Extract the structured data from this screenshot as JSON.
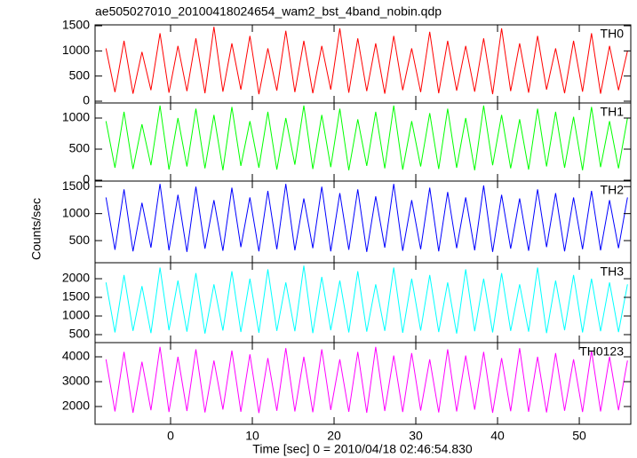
{
  "chart_data": [
    {
      "type": "line",
      "title": "ae505027010_20100418024654_wam2_bst_4band_nobin.qdp",
      "label": "TH0",
      "color": "#ff0000",
      "x": [
        -7.9,
        -6.8,
        -5.7,
        -4.6,
        -3.5,
        -2.4,
        -1.3,
        -0.2,
        0.9,
        2,
        3.1,
        4.2,
        5.3,
        6.4,
        7.5,
        8.6,
        9.7,
        10.8,
        11.9,
        13,
        14.1,
        15.2,
        16.3,
        17.4,
        18.5,
        19.6,
        20.7,
        21.8,
        22.9,
        24,
        25.1,
        26.2,
        27.3,
        28.4,
        29.5,
        30.6,
        31.7,
        32.8,
        33.9,
        35,
        36.1,
        37.2,
        38.3,
        39.4,
        40.5,
        41.6,
        42.7,
        43.8,
        44.9,
        46,
        47.1,
        48.2,
        49.3,
        50.4,
        51.5,
        52.6,
        53.7,
        54.8,
        55.9
      ],
      "values": [
        1050,
        180,
        1200,
        150,
        980,
        220,
        1350,
        170,
        1100,
        200,
        1250,
        160,
        1480,
        190,
        1150,
        230,
        1300,
        140,
        1050,
        210,
        1400,
        180,
        1200,
        160,
        1100,
        230,
        1450,
        170,
        1250,
        200,
        1150,
        150,
        1300,
        220,
        1050,
        180,
        1380,
        160,
        1200,
        210,
        1100,
        190,
        1250,
        140,
        1450,
        200,
        1150,
        170,
        1300,
        230,
        1050,
        160,
        1200,
        190,
        1350,
        150,
        1100,
        220,
        1000
      ],
      "xlim": [
        -9.24,
        56.3
      ],
      "xticks": [
        0,
        10,
        20,
        30,
        40,
        50
      ],
      "ylim": [
        -35,
        1518
      ],
      "yticks": [
        0,
        500,
        1000,
        1500
      ]
    },
    {
      "type": "line",
      "label": "TH1",
      "color": "#00ff00",
      "x": [
        -7.9,
        -6.8,
        -5.7,
        -4.6,
        -3.5,
        -2.4,
        -1.3,
        -0.2,
        0.9,
        2,
        3.1,
        4.2,
        5.3,
        6.4,
        7.5,
        8.6,
        9.7,
        10.8,
        11.9,
        13,
        14.1,
        15.2,
        16.3,
        17.4,
        18.5,
        19.6,
        20.7,
        21.8,
        22.9,
        24,
        25.1,
        26.2,
        27.3,
        28.4,
        29.5,
        30.6,
        31.7,
        32.8,
        33.9,
        35,
        36.1,
        37.2,
        38.3,
        39.4,
        40.5,
        41.6,
        42.7,
        43.8,
        44.9,
        46,
        47.1,
        48.2,
        49.3,
        50.4,
        51.5,
        52.6,
        53.7,
        54.8,
        55.9
      ],
      "values": [
        950,
        200,
        1100,
        180,
        900,
        240,
        1200,
        170,
        1000,
        220,
        1150,
        190,
        1050,
        160,
        1180,
        230,
        950,
        200,
        1100,
        170,
        1000,
        250,
        1200,
        180,
        1050,
        210,
        1150,
        160,
        980,
        230,
        1100,
        190,
        1200,
        170,
        950,
        220,
        1080,
        180,
        1150,
        200,
        1000,
        160,
        1200,
        240,
        1050,
        190,
        980,
        170,
        1150,
        220,
        1100,
        200,
        1020,
        160,
        1180,
        210,
        950,
        190,
        1000
      ],
      "xlim": [
        -9.24,
        56.3
      ],
      "xticks": [
        0,
        10,
        20,
        30,
        40,
        50
      ],
      "ylim": [
        -14,
        1243
      ],
      "yticks": [
        0,
        500,
        1000
      ]
    },
    {
      "type": "line",
      "label": "TH2",
      "color": "#0000ff",
      "ylabel": "Counts/sec",
      "x": [
        -7.9,
        -6.8,
        -5.7,
        -4.6,
        -3.5,
        -2.4,
        -1.3,
        -0.2,
        0.9,
        2,
        3.1,
        4.2,
        5.3,
        6.4,
        7.5,
        8.6,
        9.7,
        10.8,
        11.9,
        13,
        14.1,
        15.2,
        16.3,
        17.4,
        18.5,
        19.6,
        20.7,
        21.8,
        22.9,
        24,
        25.1,
        26.2,
        27.3,
        28.4,
        29.5,
        30.6,
        31.7,
        32.8,
        33.9,
        35,
        36.1,
        37.2,
        38.3,
        39.4,
        40.5,
        41.6,
        42.7,
        43.8,
        44.9,
        46,
        47.1,
        48.2,
        49.3,
        50.4,
        51.5,
        52.6,
        53.7,
        54.8,
        55.9
      ],
      "values": [
        1300,
        330,
        1450,
        300,
        1200,
        370,
        1550,
        320,
        1350,
        290,
        1500,
        350,
        1250,
        310,
        1480,
        380,
        1300,
        300,
        1420,
        340,
        1550,
        320,
        1280,
        360,
        1500,
        300,
        1380,
        330,
        1450,
        290,
        1320,
        370,
        1550,
        310,
        1250,
        340,
        1480,
        300,
        1400,
        360,
        1300,
        320,
        1520,
        290,
        1350,
        350,
        1280,
        310,
        1450,
        380,
        1380,
        300,
        1300,
        340,
        1420,
        320,
        1250,
        360,
        1300
      ],
      "xlim": [
        -9.24,
        56.3
      ],
      "xticks": [
        0,
        10,
        20,
        30,
        40,
        50
      ],
      "ylim": [
        90,
        1603
      ],
      "yticks": [
        500,
        1000,
        1500
      ]
    },
    {
      "type": "line",
      "label": "TH3",
      "color": "#00ffff",
      "x": [
        -7.9,
        -6.8,
        -5.7,
        -4.6,
        -3.5,
        -2.4,
        -1.3,
        -0.2,
        0.9,
        2,
        3.1,
        4.2,
        5.3,
        6.4,
        7.5,
        8.6,
        9.7,
        10.8,
        11.9,
        13,
        14.1,
        15.2,
        16.3,
        17.4,
        18.5,
        19.6,
        20.7,
        21.8,
        22.9,
        24,
        25.1,
        26.2,
        27.3,
        28.4,
        29.5,
        30.6,
        31.7,
        32.8,
        33.9,
        35,
        36.1,
        37.2,
        38.3,
        39.4,
        40.5,
        41.6,
        42.7,
        43.8,
        44.9,
        46,
        47.1,
        48.2,
        49.3,
        50.4,
        51.5,
        52.6,
        53.7,
        54.8,
        55.9
      ],
      "values": [
        1900,
        560,
        2100,
        600,
        1800,
        540,
        2300,
        620,
        1950,
        580,
        2150,
        530,
        1850,
        610,
        2200,
        570,
        2000,
        550,
        2250,
        600,
        1900,
        590,
        2350,
        540,
        2050,
        620,
        1950,
        560,
        2200,
        580,
        1850,
        600,
        2300,
        550,
        2000,
        610,
        2100,
        570,
        1900,
        530,
        2250,
        590,
        2000,
        560,
        2150,
        600,
        1850,
        580,
        2300,
        540,
        1950,
        620,
        2100,
        560,
        2000,
        590,
        1900,
        570,
        1850
      ],
      "xlim": [
        -9.24,
        56.3
      ],
      "xticks": [
        0,
        10,
        20,
        30,
        40,
        50
      ],
      "ylim": [
        286,
        2429
      ],
      "yticks": [
        500,
        1000,
        1500,
        2000
      ]
    },
    {
      "type": "line",
      "label": "TH0123",
      "color": "#ff00ff",
      "xlabel": "Time [sec] 0 = 2010/04/18 02:46:54.830",
      "x": [
        -7.9,
        -6.8,
        -5.7,
        -4.6,
        -3.5,
        -2.4,
        -1.3,
        -0.2,
        0.9,
        2,
        3.1,
        4.2,
        5.3,
        6.4,
        7.5,
        8.6,
        9.7,
        10.8,
        11.9,
        13,
        14.1,
        15.2,
        16.3,
        17.4,
        18.5,
        19.6,
        20.7,
        21.8,
        22.9,
        24,
        25.1,
        26.2,
        27.3,
        28.4,
        29.5,
        30.6,
        31.7,
        32.8,
        33.9,
        35,
        36.1,
        37.2,
        38.3,
        39.4,
        40.5,
        41.6,
        42.7,
        43.8,
        44.9,
        46,
        47.1,
        48.2,
        49.3,
        50.4,
        51.5,
        52.6,
        53.7,
        54.8,
        55.9
      ],
      "values": [
        3900,
        1800,
        4200,
        1750,
        3800,
        1850,
        4400,
        1780,
        4000,
        1820,
        4300,
        1760,
        3850,
        1880,
        4250,
        1790,
        4100,
        1740,
        3950,
        1830,
        4350,
        1800,
        4000,
        1770,
        4300,
        1860,
        3900,
        1790,
        4200,
        1750,
        4400,
        1820,
        4050,
        1780,
        4150,
        1840,
        3900,
        1760,
        4300,
        1800,
        4050,
        1870,
        4200,
        1750,
        3950,
        1810,
        4350,
        1790,
        4000,
        1760,
        4150,
        1830,
        3900,
        1780,
        4250,
        1800,
        4000,
        1850,
        3850
      ],
      "xlim": [
        -9.24,
        56.3
      ],
      "xticks": [
        0,
        10,
        20,
        30,
        40,
        50
      ],
      "ylim": [
        1286,
        4571
      ],
      "yticks": [
        2000,
        3000,
        4000
      ]
    }
  ]
}
